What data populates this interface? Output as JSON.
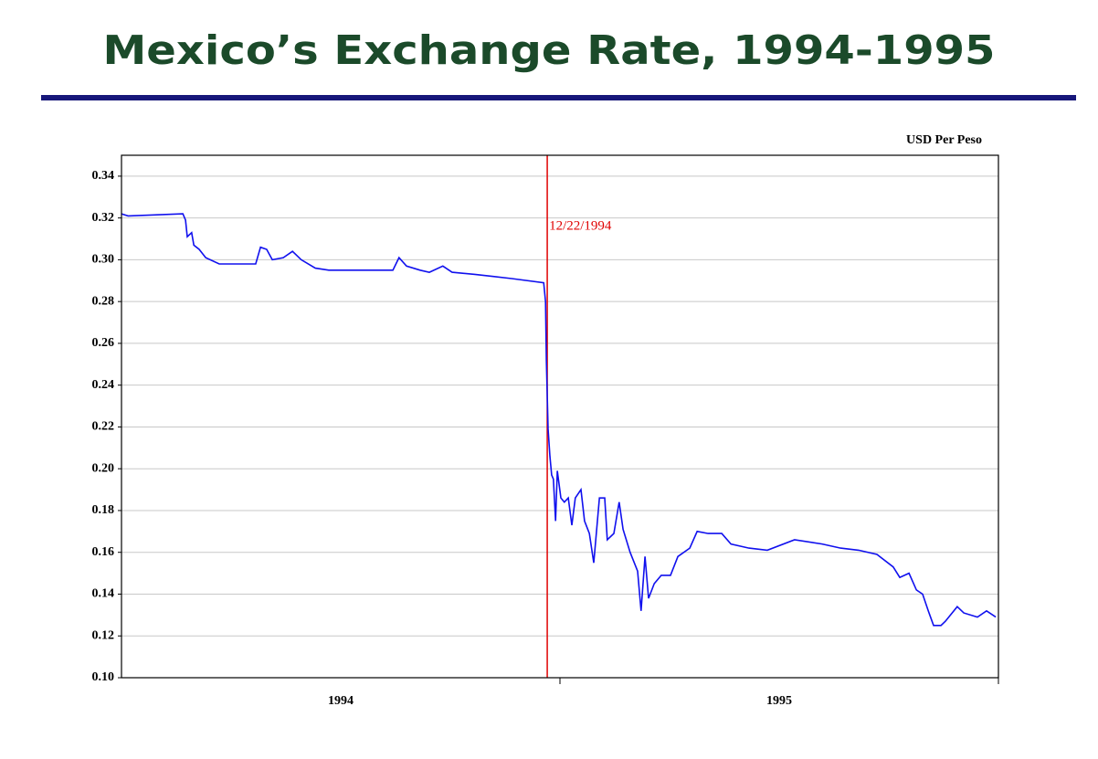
{
  "chart_data": {
    "type": "line",
    "title": "Mexico’s Exchange Rate, 1994-1995",
    "y_label": "USD Per Peso",
    "annotation": {
      "x": 1994.971,
      "label": "12/22/1994",
      "color": "#e00000"
    },
    "categories": [
      "1994",
      "1995"
    ],
    "xlim": [
      1994,
      1996
    ],
    "ylim": [
      0.1,
      0.35
    ],
    "yticks": [
      {
        "value": 0.1,
        "label": "0.10"
      },
      0.12,
      0.14,
      0.16,
      0.18,
      {
        "value": 0.2,
        "label": "0.20"
      },
      0.22,
      0.24,
      0.26,
      0.28,
      {
        "value": 0.3,
        "label": "0.30"
      },
      0.32,
      0.34
    ],
    "grid": true,
    "series": [
      {
        "name": "USD Per Peso",
        "color": "#1010ee",
        "x": [
          1994.0,
          1994.015,
          1994.14,
          1994.146,
          1994.15,
          1994.16,
          1994.165,
          1994.177,
          1994.192,
          1994.223,
          1994.306,
          1994.317,
          1994.331,
          1994.344,
          1994.369,
          1994.39,
          1994.41,
          1994.442,
          1994.473,
          1994.515,
          1994.598,
          1994.619,
          1994.633,
          1994.65,
          1994.681,
          1994.702,
          1994.733,
          1994.754,
          1994.806,
          1994.848,
          1994.89,
          1994.963,
          1994.967,
          1994.969,
          1994.973,
          1994.977,
          1994.981,
          1994.985,
          1994.99,
          1994.994,
          1995.002,
          1995.01,
          1995.019,
          1995.027,
          1995.035,
          1995.048,
          1995.056,
          1995.067,
          1995.077,
          1995.09,
          1995.102,
          1995.108,
          1995.123,
          1995.135,
          1995.144,
          1995.16,
          1995.177,
          1995.185,
          1995.194,
          1995.202,
          1995.215,
          1995.231,
          1995.252,
          1995.269,
          1995.296,
          1995.313,
          1995.338,
          1995.369,
          1995.39,
          1995.431,
          1995.473,
          1995.535,
          1995.598,
          1995.64,
          1995.681,
          1995.723,
          1995.76,
          1995.775,
          1995.796,
          1995.813,
          1995.827,
          1995.84,
          1995.852,
          1995.869,
          1995.879,
          1995.906,
          1995.921,
          1995.952,
          1995.973,
          1995.994
        ],
        "values": [
          0.322,
          0.321,
          0.322,
          0.319,
          0.311,
          0.313,
          0.307,
          0.305,
          0.301,
          0.298,
          0.298,
          0.306,
          0.305,
          0.3,
          0.301,
          0.304,
          0.3,
          0.296,
          0.295,
          0.295,
          0.295,
          0.295,
          0.301,
          0.297,
          0.295,
          0.294,
          0.297,
          0.294,
          0.293,
          0.292,
          0.291,
          0.289,
          0.28,
          0.252,
          0.219,
          0.206,
          0.197,
          0.195,
          0.175,
          0.199,
          0.186,
          0.184,
          0.186,
          0.173,
          0.186,
          0.19,
          0.175,
          0.169,
          0.155,
          0.186,
          0.186,
          0.166,
          0.169,
          0.184,
          0.171,
          0.16,
          0.151,
          0.132,
          0.158,
          0.138,
          0.145,
          0.149,
          0.149,
          0.158,
          0.162,
          0.17,
          0.169,
          0.169,
          0.164,
          0.162,
          0.161,
          0.166,
          0.164,
          0.162,
          0.161,
          0.159,
          0.153,
          0.148,
          0.15,
          0.142,
          0.14,
          0.132,
          0.125,
          0.125,
          0.127,
          0.134,
          0.131,
          0.129,
          0.132,
          0.129
        ]
      }
    ]
  }
}
